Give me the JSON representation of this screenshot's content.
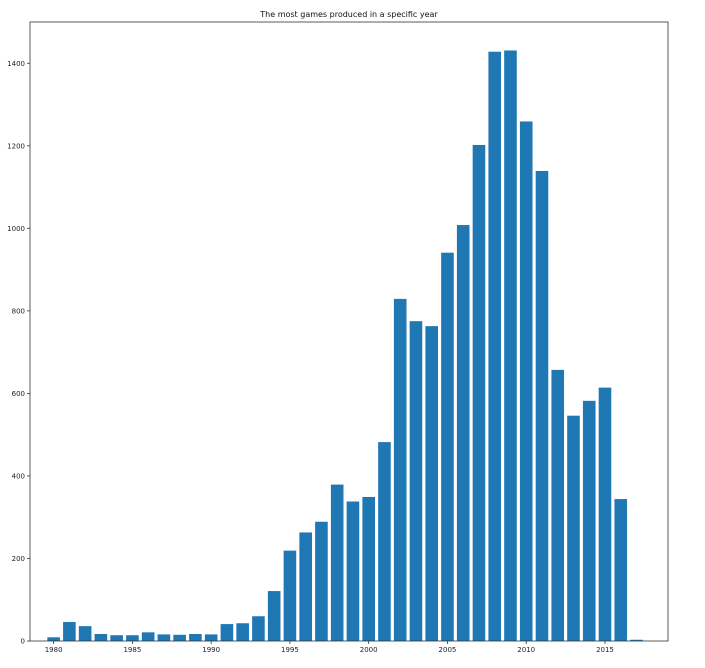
{
  "chart_data": {
    "type": "bar",
    "title": "The most games produced in a specific year",
    "xlabel": "",
    "ylabel": "",
    "x": [
      1980,
      1981,
      1982,
      1983,
      1984,
      1985,
      1986,
      1987,
      1988,
      1989,
      1990,
      1991,
      1992,
      1993,
      1994,
      1995,
      1996,
      1997,
      1998,
      1999,
      2000,
      2001,
      2002,
      2003,
      2004,
      2005,
      2006,
      2007,
      2008,
      2009,
      2010,
      2011,
      2012,
      2013,
      2014,
      2015,
      2016,
      2017
    ],
    "values": [
      9,
      46,
      36,
      17,
      14,
      14,
      21,
      16,
      15,
      17,
      16,
      41,
      43,
      60,
      121,
      219,
      263,
      289,
      379,
      338,
      349,
      482,
      829,
      775,
      763,
      941,
      1008,
      1202,
      1428,
      1431,
      1259,
      1139,
      657,
      546,
      582,
      614,
      344,
      3
    ],
    "xticks": [
      1980,
      1985,
      1990,
      1995,
      2000,
      2005,
      2010,
      2015
    ],
    "yticks": [
      0,
      200,
      400,
      600,
      800,
      1000,
      1200,
      1400
    ],
    "xlim": [
      1978.5,
      2019.0
    ],
    "ylim": [
      0,
      1500
    ],
    "grid": false,
    "bar_color": "#1f77b4"
  }
}
